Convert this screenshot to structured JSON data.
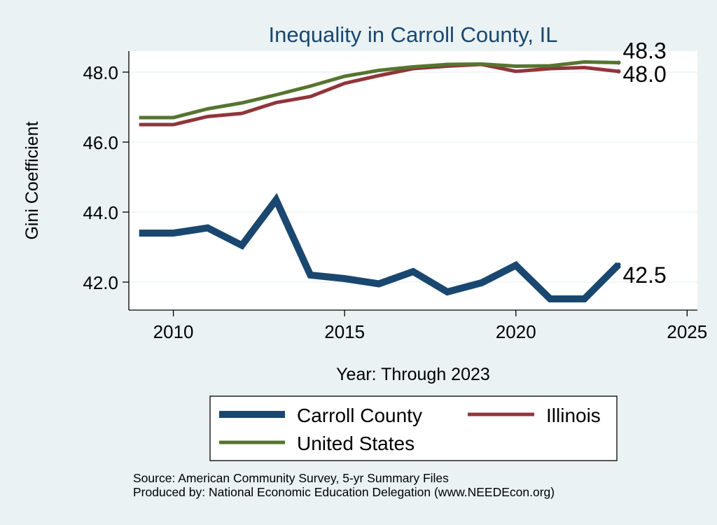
{
  "chart_data": {
    "type": "line",
    "title": "Inequality in Carroll County, IL",
    "xlabel": "Year: Through 2023",
    "ylabel": "Gini Coefficient",
    "xlim": [
      2008.7,
      2025.3
    ],
    "ylim": [
      41.2,
      48.6
    ],
    "xticks": [
      2010,
      2015,
      2020,
      2025
    ],
    "yticks": [
      42.0,
      44.0,
      46.0,
      48.0
    ],
    "grid": true,
    "legend_position": "bottom",
    "series": [
      {
        "name": "Carroll County",
        "color": "#1a476f",
        "width": "thick",
        "end_label": "42.5",
        "x": [
          2009,
          2010,
          2011,
          2012,
          2013,
          2014,
          2015,
          2016,
          2017,
          2018,
          2019,
          2020,
          2021,
          2022,
          2023
        ],
        "values": [
          43.4,
          43.4,
          43.55,
          43.05,
          44.35,
          42.2,
          42.1,
          41.95,
          42.3,
          41.72,
          41.98,
          42.48,
          41.52,
          41.52,
          42.5
        ]
      },
      {
        "name": "Illinois",
        "color": "#90353b",
        "width": "medium",
        "end_label": "48.0",
        "x": [
          2009,
          2010,
          2011,
          2012,
          2013,
          2014,
          2015,
          2016,
          2017,
          2018,
          2019,
          2020,
          2021,
          2022,
          2023
        ],
        "values": [
          46.5,
          46.5,
          46.73,
          46.82,
          47.13,
          47.3,
          47.68,
          47.9,
          48.1,
          48.17,
          48.22,
          48.02,
          48.1,
          48.13,
          48.02
        ]
      },
      {
        "name": "United States",
        "color": "#55752f",
        "width": "medium",
        "end_label": "48.3",
        "x": [
          2009,
          2010,
          2011,
          2012,
          2013,
          2014,
          2015,
          2016,
          2017,
          2018,
          2019,
          2020,
          2021,
          2022,
          2023
        ],
        "values": [
          46.7,
          46.7,
          46.95,
          47.12,
          47.35,
          47.6,
          47.88,
          48.05,
          48.15,
          48.22,
          48.23,
          48.17,
          48.18,
          48.29,
          48.27
        ]
      }
    ],
    "legend_entries": [
      "Carroll County",
      "Illinois",
      "United States"
    ]
  },
  "footer": {
    "source": "Source: American Community Survey, 5-yr Summary Files",
    "produced_by": "Produced by: National Economic Education Delegation (www.NEEDEcon.org)"
  },
  "colors": {
    "background": "#eaf2f3",
    "plot_background": "#ffffff",
    "title": "#1a476f",
    "grid": "#eaf2f3"
  }
}
